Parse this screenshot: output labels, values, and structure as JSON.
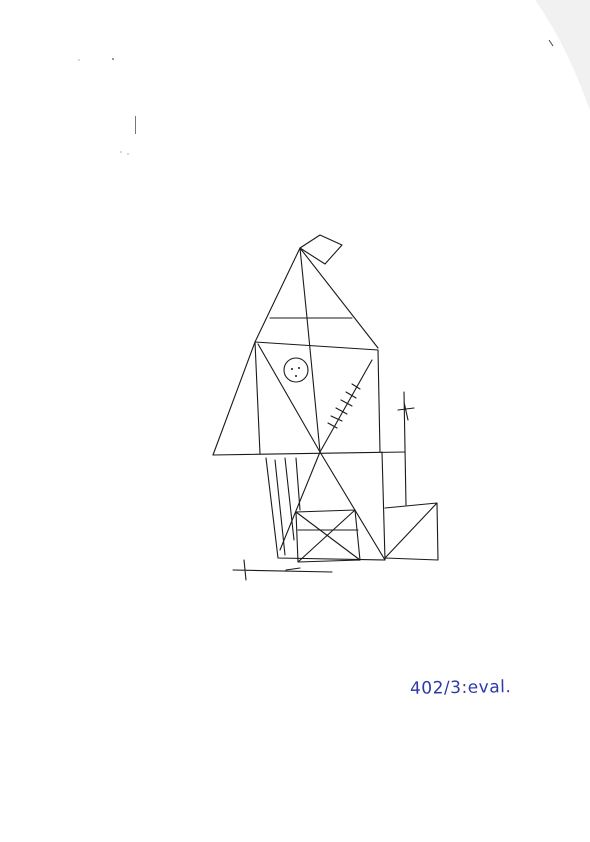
{
  "sheet": {
    "annotation": "402/3:eval.",
    "ink_color": "#1a1a1a",
    "annotation_color": "#2c3aa6",
    "paper_color": "#ffffff"
  }
}
